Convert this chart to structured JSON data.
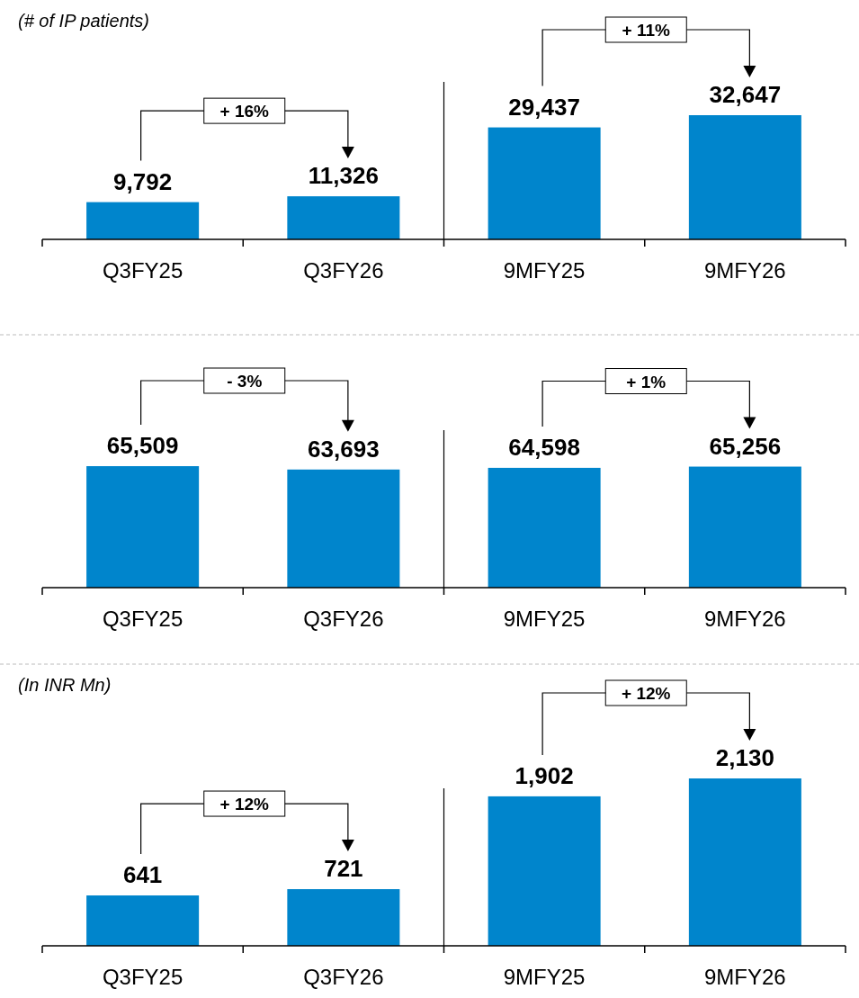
{
  "chart_data": [
    {
      "type": "bar",
      "subtitle": "(# of IP patients)",
      "categories": [
        "Q3FY25",
        "Q3FY26",
        "9MFY25",
        "9MFY26"
      ],
      "values": [
        9792,
        11326,
        29437,
        32647
      ],
      "value_labels": [
        "9,792",
        "11,326",
        "29,437",
        "32,647"
      ],
      "color": "#0085cc",
      "annotations": [
        "+ 16%",
        "+ 11%"
      ]
    },
    {
      "type": "bar",
      "categories": [
        "Q3FY25",
        "Q3FY26",
        "9MFY25",
        "9MFY26"
      ],
      "values": [
        65509,
        63693,
        64598,
        65256
      ],
      "value_labels": [
        "65,509",
        "63,693",
        "64,598",
        "65,256"
      ],
      "color": "#0085cc",
      "annotations": [
        "- 3%",
        "+ 1%"
      ]
    },
    {
      "type": "bar",
      "subtitle": "(In INR Mn)",
      "categories": [
        "Q3FY25",
        "Q3FY26",
        "9MFY25",
        "9MFY26"
      ],
      "values": [
        641,
        721,
        1902,
        2130
      ],
      "value_labels": [
        "641",
        "721",
        "1,902",
        "2,130"
      ],
      "color": "#0085cc",
      "annotations": [
        "+ 12%",
        "+ 12%"
      ]
    }
  ]
}
